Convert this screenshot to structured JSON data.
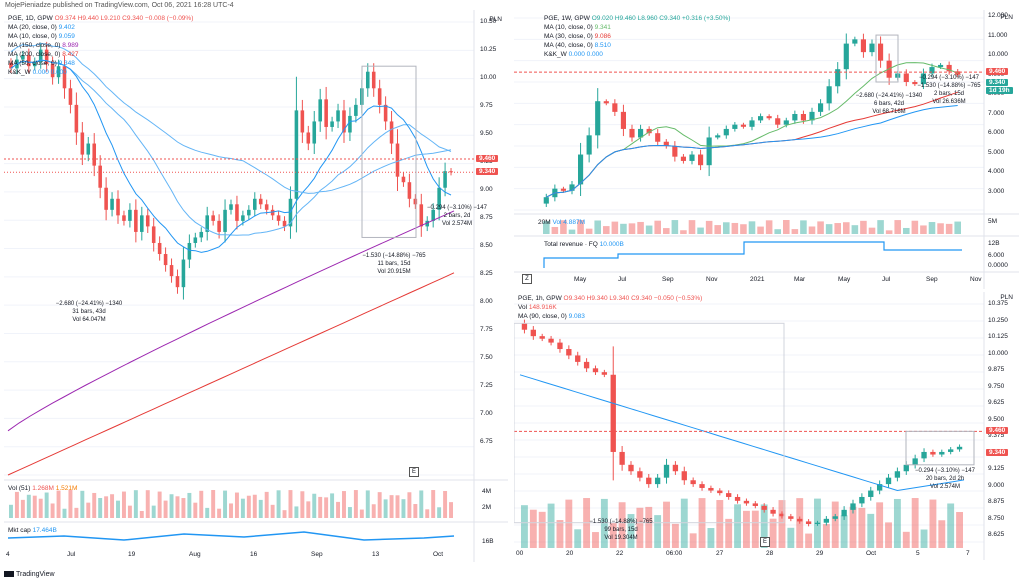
{
  "header": {
    "text": "MojePieniadze published on TradingView.com, Oct 06, 2021 16:28 UTC-4"
  },
  "footer": {
    "brand": "TradingView"
  },
  "colors": {
    "up": "#26a69a",
    "down": "#ef5350",
    "ma_blue": "#2196f3",
    "ma_light": "#64b5f6",
    "ma_purple": "#9c27b0",
    "ma_red": "#e53935",
    "green_ma": "#66bb6a",
    "grid": "#f0f3fa"
  },
  "panels": {
    "daily": {
      "legend": [
        {
          "label": "PGE, 1D, GPW",
          "values": "O9.374 H9.440 L9.210 C9.340 −0.008 (−0.09%)",
          "color": "#ef5350"
        },
        {
          "label": "MA (20, close, 0)",
          "values": "9.402",
          "color": "#2196f3"
        },
        {
          "label": "MA (10, close, 0)",
          "values": "9.059",
          "color": "#2196f3"
        },
        {
          "label": "MA (150, close, 0)",
          "values": "8.989",
          "color": "#9c27b0"
        },
        {
          "label": "MA (200, close, 0)",
          "values": "8.427",
          "color": "#e53935"
        },
        {
          "label": "MA (50, close, 0)",
          "values": "9.348",
          "color": "#2196f3"
        },
        {
          "label": "K&K_W",
          "values": "0.000  0.000",
          "color": "#2196f3"
        }
      ],
      "currency": "PLN",
      "price_ticks": [
        "10.50",
        "10.25",
        "10.00",
        "9.75",
        "9.50",
        "9.25",
        "9.00",
        "8.75",
        "8.50",
        "8.25",
        "8.00",
        "7.75",
        "7.50",
        "7.25",
        "7.00",
        "6.75"
      ],
      "time_ticks": [
        "4",
        "Jul",
        "19",
        "Aug",
        "16",
        "Sep",
        "13",
        "Oct"
      ],
      "price_tags": [
        {
          "value": "9.460",
          "kind": "down"
        },
        {
          "value": "9.340",
          "kind": "down"
        }
      ],
      "notes": [
        {
          "lines": [
            "−2.680 (−24.41%) −1340",
            "31 bars, 43d",
            "Vol 64.047M"
          ]
        },
        {
          "lines": [
            "−0.294 (−3.10%) −147",
            "2 bars, 2d",
            "Vol 2.574M"
          ]
        },
        {
          "lines": [
            "−1.530 (−14.88%) −765",
            "11 bars, 15d",
            "Vol 20.915M"
          ]
        }
      ],
      "vol_legend": {
        "label": "Vol (51)",
        "v1": "1.268M",
        "v2": "1.521M"
      },
      "vol_ticks": [
        "4M",
        "2M"
      ],
      "mcap_legend": {
        "label": "Mkt cap",
        "value": "17.464B"
      },
      "mcap_ticks": [
        "16B"
      ],
      "e_label": "E"
    },
    "weekly": {
      "legend": [
        {
          "label": "PGE, 1W, GPW",
          "values": "O9.020 H9.460 L8.960 C9.340 +0.316 (+3.50%)",
          "color": "#26a69a"
        },
        {
          "label": "MA (10, close, 0)",
          "values": "9.341",
          "color": "#66bb6a"
        },
        {
          "label": "MA (30, close, 0)",
          "values": "9.086",
          "color": "#e53935"
        },
        {
          "label": "MA (40, close, 0)",
          "values": "8.510",
          "color": "#2196f3"
        },
        {
          "label": "K&K_W",
          "values": "0.000  0.000",
          "color": "#2196f3"
        }
      ],
      "currency": "PLN",
      "price_ticks": [
        "12.000",
        "11.000",
        "10.000",
        "9.000",
        "8.000",
        "7.000",
        "6.000",
        "5.000",
        "4.000",
        "3.000"
      ],
      "time_ticks": [
        "May",
        "Jul",
        "Sep",
        "Nov",
        "2021",
        "Mar",
        "May",
        "Jul",
        "Sep",
        "Nov"
      ],
      "price_tags": [
        {
          "value": "9.460",
          "kind": "down"
        },
        {
          "value": "9.340",
          "kind": "up"
        },
        {
          "value": "1d 19h",
          "kind": "up"
        }
      ],
      "notes": [
        {
          "lines": [
            "−2.680 (−24.41%) −1340",
            "6 bars, 42d",
            "Vol 68.716M"
          ]
        },
        {
          "lines": [
            "−0.294 (−3.10%) −147",
            "−1.530 (−14.88%) −765",
            "2 bars, 15d",
            "Vol 26.636M"
          ]
        }
      ],
      "vol_legend": {
        "label": "20M",
        "value": "Vol 4.887M"
      },
      "vol_ticks": [
        "5M"
      ],
      "rev_legend": {
        "label": "Total revenue · FQ",
        "value": "10.000B"
      },
      "rev_ticks": [
        "12B",
        "6.000",
        "0.0000"
      ],
      "z_label": "Z"
    },
    "hourly": {
      "legend": [
        {
          "label": "PGE, 1h, GPW",
          "values": "O9.340 H9.340 L9.340 C9.340 −0.050 (−0.53%)",
          "color": "#ef5350"
        },
        {
          "label": "Vol",
          "values": "148.916K",
          "color": "#ef5350"
        },
        {
          "label": "MA (90, close, 0)",
          "values": "9.083",
          "color": "#2196f3"
        }
      ],
      "currency": "PLN",
      "price_ticks": [
        "10.375",
        "10.250",
        "10.125",
        "10.000",
        "9.875",
        "9.750",
        "9.625",
        "9.500",
        "9.375",
        "9.250",
        "9.125",
        "9.000",
        "8.875",
        "8.750",
        "8.625"
      ],
      "time_ticks": [
        "00",
        "20",
        "22",
        "06:00",
        "27",
        "28",
        "29",
        "Oct",
        "5",
        "7"
      ],
      "price_tags": [
        {
          "value": "9.460",
          "kind": "down"
        },
        {
          "value": "9.340",
          "kind": "down"
        }
      ],
      "notes": [
        {
          "lines": [
            "−0.294 (−3.10%) −147",
            "20 bars, 2d 2h",
            "Vol 2.574M"
          ]
        },
        {
          "lines": [
            "−1.530 (−14.88%) −765",
            "99 bars, 15d",
            "Vol 19.304M"
          ]
        }
      ],
      "e_label": "E"
    }
  },
  "chart_data": [
    {
      "type": "candlestick",
      "title": "PGE, 1D, GPW",
      "ylim": [
        6.6,
        10.7
      ],
      "closes": [
        10.28,
        10.36,
        10.4,
        10.3,
        10.34,
        10.45,
        10.32,
        10.2,
        10.3,
        10.1,
        9.95,
        9.7,
        9.5,
        9.6,
        9.4,
        9.2,
        9.0,
        9.1,
        8.95,
        8.9,
        9.0,
        8.8,
        8.95,
        8.85,
        8.7,
        8.6,
        8.5,
        8.4,
        8.3,
        8.55,
        8.7,
        8.75,
        8.8,
        8.95,
        8.9,
        8.8,
        9.0,
        9.05,
        8.9,
        8.95,
        9.0,
        9.1,
        9.05,
        9.0,
        8.95,
        8.9,
        8.85,
        9.1,
        9.9,
        9.7,
        9.6,
        9.8,
        10.0,
        9.75,
        9.8,
        9.9,
        9.7,
        9.85,
        9.95,
        10.1,
        10.25,
        10.1,
        9.95,
        9.8,
        9.6,
        9.3,
        9.25,
        9.1,
        9.05,
        8.85,
        8.9,
        9.0,
        9.2,
        9.35,
        9.34
      ],
      "ma_values": {
        "ma20_end": 9.402,
        "ma10_end": 9.059,
        "ma150_end": 8.989,
        "ma200_end": 8.427,
        "ma50_end": 9.348
      }
    },
    {
      "type": "candlestick",
      "title": "PGE, 1W, GPW",
      "ylim": [
        3.0,
        12.0
      ],
      "closes": [
        3.6,
        4.0,
        3.9,
        4.2,
        5.6,
        6.5,
        8.1,
        8.0,
        7.6,
        6.8,
        6.4,
        6.8,
        6.6,
        6.2,
        6.0,
        5.5,
        5.3,
        5.6,
        5.1,
        6.4,
        6.5,
        6.8,
        7.0,
        6.9,
        7.2,
        7.4,
        7.3,
        7.0,
        7.2,
        7.5,
        7.2,
        7.6,
        8.0,
        8.8,
        9.6,
        10.8,
        11.0,
        10.4,
        10.8,
        10.0,
        9.2,
        9.4,
        9.0,
        8.9,
        9.4,
        9.7,
        9.8,
        9.5,
        9.34
      ],
      "ma_values": {
        "ma10_end": 9.341,
        "ma30_end": 9.086,
        "ma40_end": 8.51
      }
    },
    {
      "type": "candlestick",
      "title": "PGE, 1h, GPW",
      "ylim": [
        8.6,
        10.45
      ],
      "closes": [
        10.25,
        10.2,
        10.18,
        10.15,
        10.1,
        10.05,
        10.0,
        9.95,
        9.92,
        9.9,
        9.3,
        9.2,
        9.15,
        9.1,
        9.05,
        9.1,
        9.2,
        9.15,
        9.08,
        9.05,
        9.02,
        9.0,
        8.98,
        8.95,
        8.92,
        8.9,
        8.88,
        8.85,
        8.82,
        8.8,
        8.78,
        8.76,
        8.74,
        8.75,
        8.78,
        8.8,
        8.85,
        8.9,
        8.95,
        9.0,
        9.05,
        9.1,
        9.15,
        9.2,
        9.25,
        9.3,
        9.28,
        9.3,
        9.32,
        9.34
      ],
      "ma_values": {
        "ma90_end": 9.083
      }
    }
  ]
}
